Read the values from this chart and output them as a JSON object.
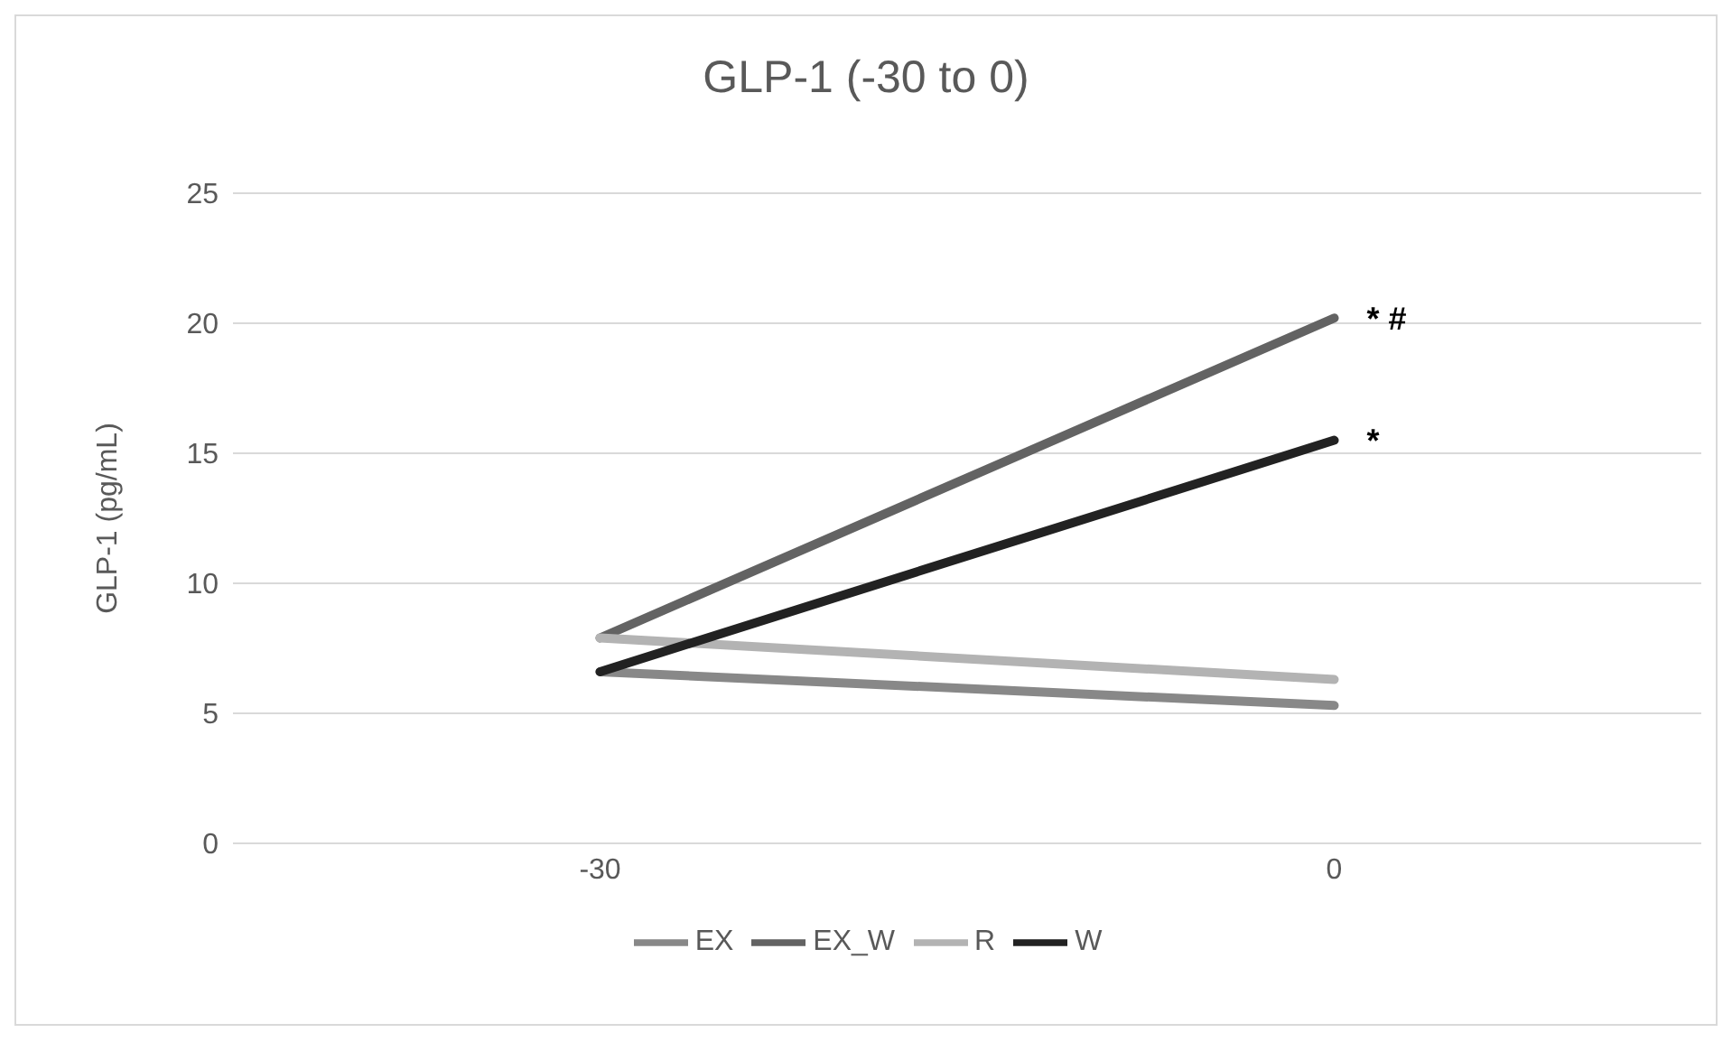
{
  "chart_data": {
    "type": "line",
    "title": "GLP-1 (-30 to 0)",
    "ylabel": "GLP-1 (pg/mL)",
    "categories": [
      "-30",
      "0"
    ],
    "series": [
      {
        "name": "EX_W",
        "color": "#636363",
        "values": [
          7.9,
          20.2
        ]
      },
      {
        "name": "R",
        "color": "#b3b3b3",
        "values": [
          7.9,
          6.3
        ]
      },
      {
        "name": "EX",
        "color": "#888888",
        "values": [
          6.6,
          5.3
        ]
      },
      {
        "name": "W",
        "color": "#222222",
        "values": [
          6.6,
          15.5
        ]
      }
    ],
    "ylim": [
      0,
      25
    ],
    "yticks": [
      0,
      5,
      10,
      15,
      20,
      25
    ],
    "grid": "y",
    "legend": "bottom",
    "marker": "none",
    "line_style": "solid",
    "annotations": [
      {
        "text": "* #",
        "x": "0",
        "y": 20.2
      },
      {
        "text": "*",
        "x": "0",
        "y": 15.5
      }
    ]
  }
}
